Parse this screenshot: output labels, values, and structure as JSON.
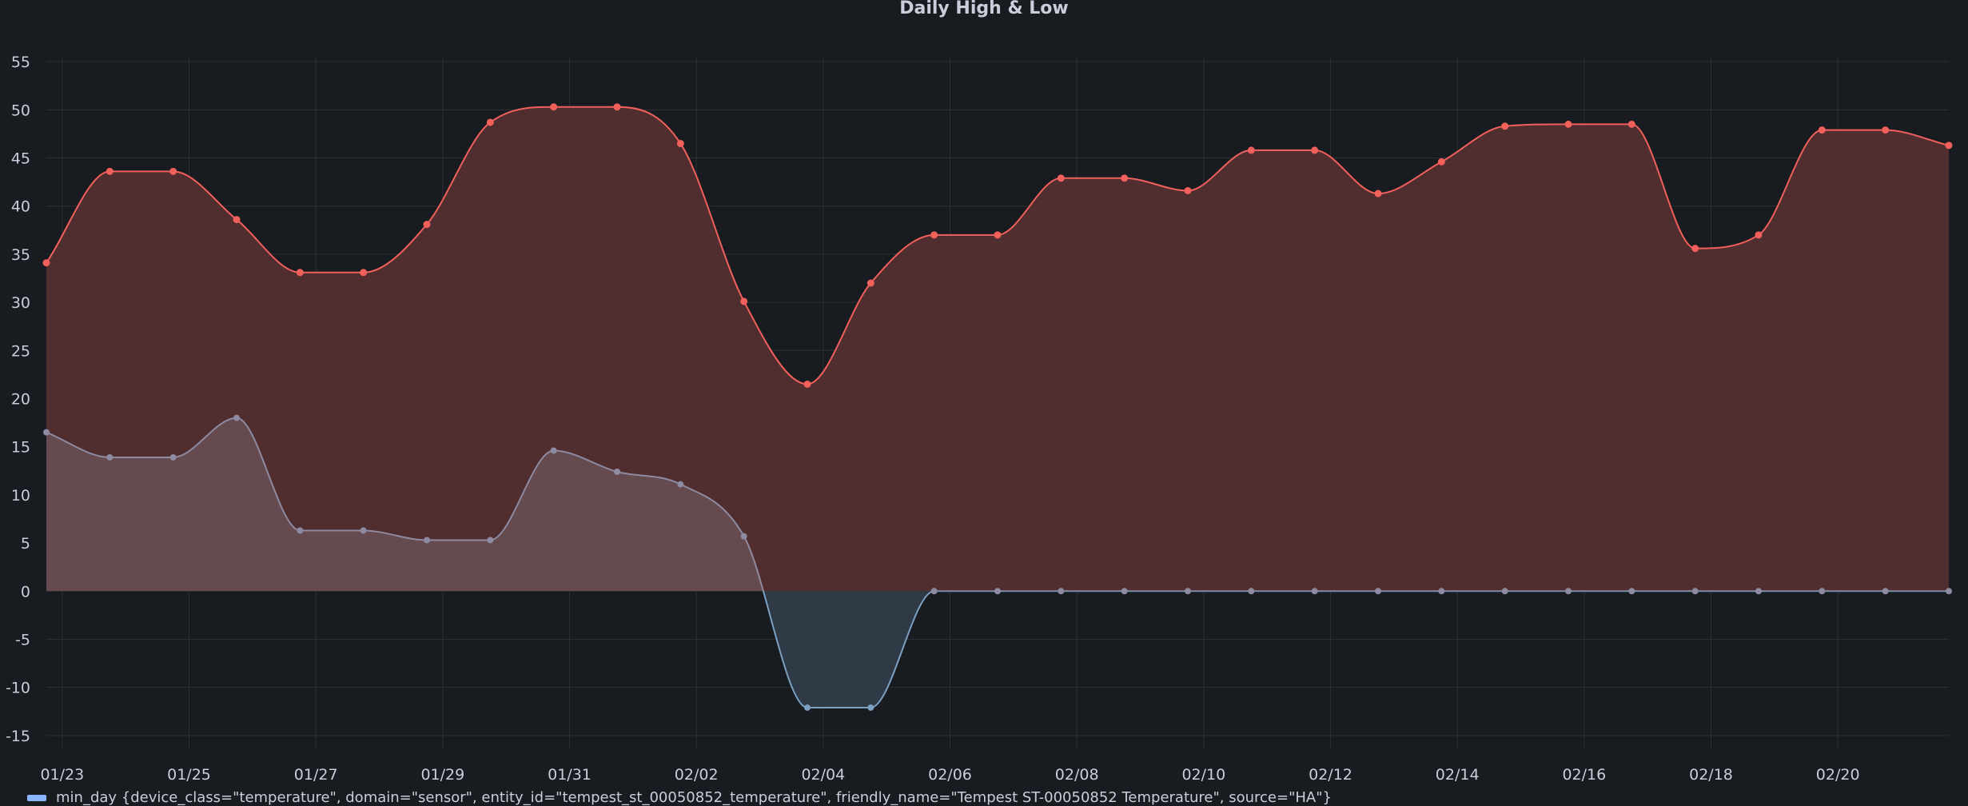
{
  "panel": {
    "title": "Daily High & Low"
  },
  "legend": {
    "visible_series_label": "min_day {device_class=\"temperature\", domain=\"sensor\", entity_id=\"tempest_st_00050852_temperature\", friendly_name=\"Tempest ST-00050852 Temperature\", source=\"HA\"}",
    "visible_series_color": "#8ab8ff"
  },
  "colors": {
    "background": "#181b1f",
    "grid": "#2c3035",
    "high": "#f2605c",
    "high_fill": "#532e30",
    "low_line": "#8e8aa2",
    "low_pos_fill": "#654b4f",
    "low_neg_line": "#7ba0c2",
    "low_neg_fill": "#2f3a46",
    "tick_text": "#ccccdc"
  },
  "chart_data": {
    "type": "area",
    "title": "Daily High & Low",
    "xlabel": "",
    "ylabel": "",
    "ylim": [
      -18,
      58
    ],
    "yticks": [
      55,
      50,
      45,
      40,
      35,
      30,
      25,
      20,
      15,
      10,
      5,
      0,
      -5,
      -10,
      -15
    ],
    "x_tick_labels": [
      "01/23",
      "01/25",
      "01/27",
      "01/29",
      "01/31",
      "02/02",
      "02/04",
      "02/06",
      "02/08",
      "02/10",
      "02/12",
      "02/14",
      "02/16",
      "02/18",
      "02/20"
    ],
    "grid": true,
    "legend_position": "bottom-left",
    "series": [
      {
        "name": "",
        "role": "high",
        "values": [
          34.1,
          43.6,
          43.6,
          38.6,
          33.1,
          33.1,
          38.1,
          48.7,
          50.3,
          50.3,
          46.5,
          30.1,
          21.5,
          32.0,
          37.0,
          37.0,
          42.9,
          42.9,
          41.6,
          45.8,
          45.8,
          41.3,
          44.6,
          48.3,
          48.5,
          48.5,
          35.6,
          37.0,
          47.9,
          47.9,
          46.3
        ]
      },
      {
        "name": "min_day {device_class=\"temperature\", domain=\"sensor\", entity_id=\"tempest_st_00050852_temperature\", friendly_name=\"Tempest ST-00050852 Temperature\", source=\"HA\"}",
        "role": "low",
        "values": [
          16.5,
          13.9,
          13.9,
          18.0,
          6.3,
          6.3,
          5.3,
          5.3,
          14.6,
          12.4,
          11.1,
          5.7,
          -12.1,
          -12.1,
          0,
          0,
          0,
          0,
          0,
          0,
          0,
          0,
          0,
          0,
          0,
          0,
          0,
          0,
          0,
          0,
          0
        ]
      }
    ]
  }
}
